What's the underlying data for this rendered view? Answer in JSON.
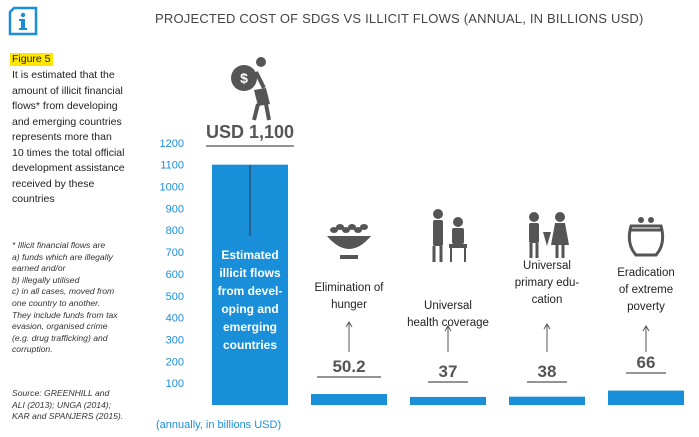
{
  "title": "PROJECTED COST OF SDGS VS ILLICIT FLOWS (ANNUAL, IN BILLIONS USD)",
  "figure_label": "Figure 5",
  "intro_lines": [
    "It is estimated that the",
    "amount of illicit financial",
    "flows* from developing",
    "and emerging countries",
    "represents more than",
    "10 times the total official",
    "development assistance",
    "received by these",
    "countries"
  ],
  "footnote_head": "* Illicit financial flows are",
  "footnote_items": [
    "a) funds which are illegally",
    "earned and/or",
    "b) illegally utilised",
    "c) in all cases, moved from",
    "one country to another."
  ],
  "footnote_note": [
    "They include funds from tax",
    "evasion, organised crime",
    "(e.g. drug trafficking) and",
    "corruption."
  ],
  "source_lines": [
    "Source: GREENHILL and",
    "ALI (2013); UNGA (2014);",
    "KAR and SPANJERS (2015)."
  ],
  "axis_note": "(annually, in billions USD)",
  "colors": {
    "bar": "#1a8fd9",
    "accent": "#ffe600",
    "icon": "#1a8fd9",
    "value_text": "#555555",
    "pictogram": "#555555"
  },
  "chart_data": {
    "type": "bar",
    "title": "PROJECTED COST OF SDGS VS ILLICIT FLOWS (ANNUAL, IN BILLIONS USD)",
    "ylabel": "(annually, in billions USD)",
    "ylim": [
      0,
      1200
    ],
    "yticks": [
      "100",
      "200",
      "300",
      "400",
      "500",
      "600",
      "700",
      "800",
      "900",
      "1000",
      "1100",
      "1200"
    ],
    "categories": [
      "Estimated illicit flows from developing and emerging countries",
      "Elimination of hunger",
      "Universal health coverage",
      "Universal primary education",
      "Eradication of extreme poverty"
    ],
    "values": [
      1100,
      50.2,
      37,
      38,
      66
    ],
    "value_labels": [
      "USD 1,100",
      "50.2",
      "37",
      "38",
      "66"
    ],
    "bar_text_lines": [
      "Estimated",
      "illicit flows",
      "from devel-",
      "oping and",
      "emerging",
      "countries"
    ],
    "category_label_lines": [
      [],
      [
        "Elimination of",
        "hunger"
      ],
      [
        "Universal",
        "health coverage"
      ],
      [
        "Universal",
        "primary edu-",
        "cation"
      ],
      [
        "Eradication",
        "of extreme",
        "poverty"
      ]
    ],
    "icons": [
      "money-bag-person-icon",
      "food-bowl-icon",
      "health-care-icon",
      "children-education-icon",
      "coin-purse-icon"
    ]
  }
}
